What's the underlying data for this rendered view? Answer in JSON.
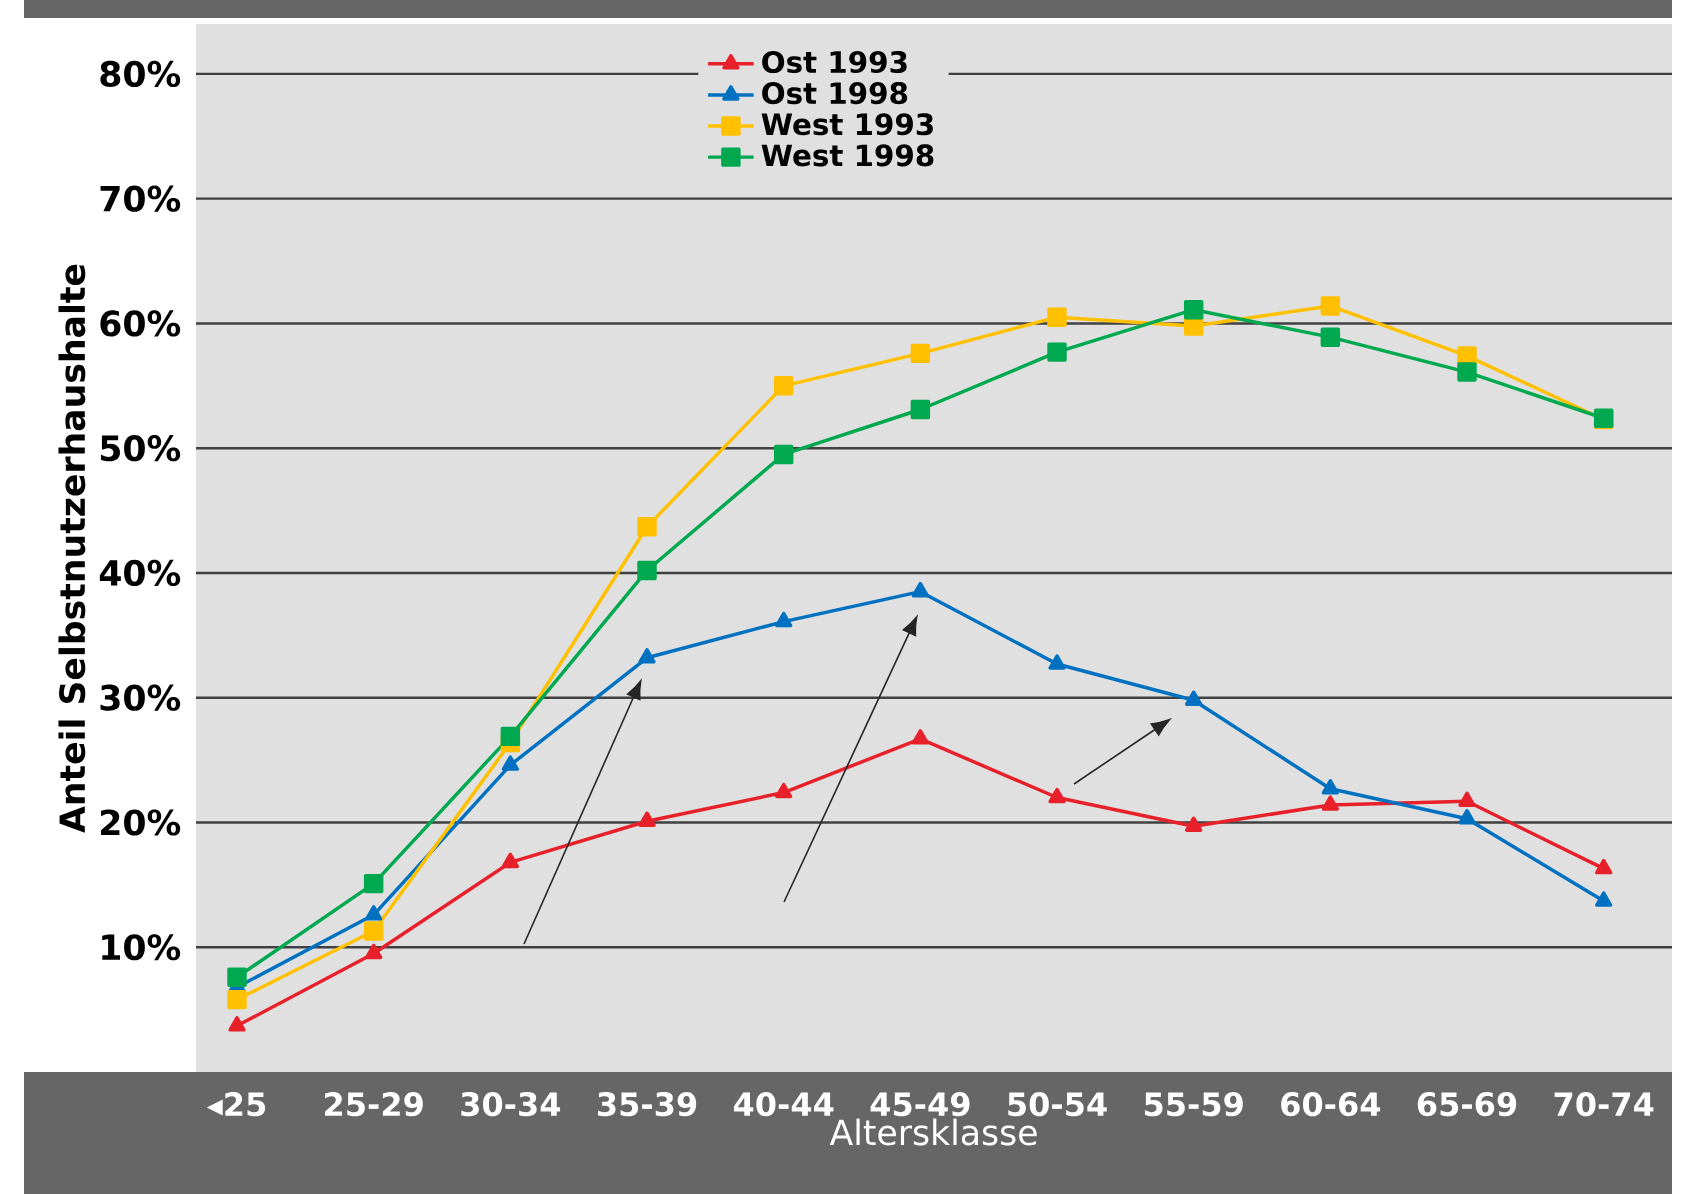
{
  "chart_data": {
    "type": "line",
    "xlabel": "Altersklasse",
    "ylabel": "Anteil Selbstnutzerhaushalte",
    "categories": [
      "◂25",
      "25-29",
      "30-34",
      "35-39",
      "40-44",
      "45-49",
      "50-54",
      "55-59",
      "60-64",
      "65-69",
      "70-74"
    ],
    "series": [
      {
        "name": "Ost 1993",
        "color": "#e8202a",
        "marker": "triangle",
        "values": [
          3.7,
          9.5,
          16.8,
          20.1,
          22.4,
          26.7,
          22.0,
          19.7,
          21.4,
          21.7,
          16.3
        ]
      },
      {
        "name": "Ost 1998",
        "color": "#0070c0",
        "marker": "triangle",
        "values": [
          6.8,
          12.6,
          24.6,
          33.2,
          36.1,
          38.5,
          32.7,
          29.8,
          22.7,
          20.3,
          13.7
        ]
      },
      {
        "name": "West 1993",
        "color": "#ffc000",
        "marker": "square",
        "values": [
          5.8,
          11.3,
          26.4,
          43.7,
          55.0,
          57.6,
          60.5,
          59.8,
          61.4,
          57.4,
          52.3
        ]
      },
      {
        "name": "West 1998",
        "color": "#00a850",
        "marker": "square",
        "values": [
          7.6,
          15.1,
          26.9,
          40.2,
          49.5,
          53.1,
          57.7,
          61.1,
          58.9,
          56.1,
          52.4
        ]
      }
    ],
    "ylim": [
      0,
      84
    ],
    "yticks": [
      {
        "value": 10,
        "label": "10%"
      },
      {
        "value": 20,
        "label": "20%"
      },
      {
        "value": 30,
        "label": "30%"
      },
      {
        "value": 40,
        "label": "40%"
      },
      {
        "value": 50,
        "label": "50%"
      },
      {
        "value": 60,
        "label": "60%"
      },
      {
        "value": 70,
        "label": "70%"
      },
      {
        "value": 80,
        "label": "80%"
      }
    ],
    "grid": "y",
    "legend": "top",
    "line_style": "solid"
  }
}
